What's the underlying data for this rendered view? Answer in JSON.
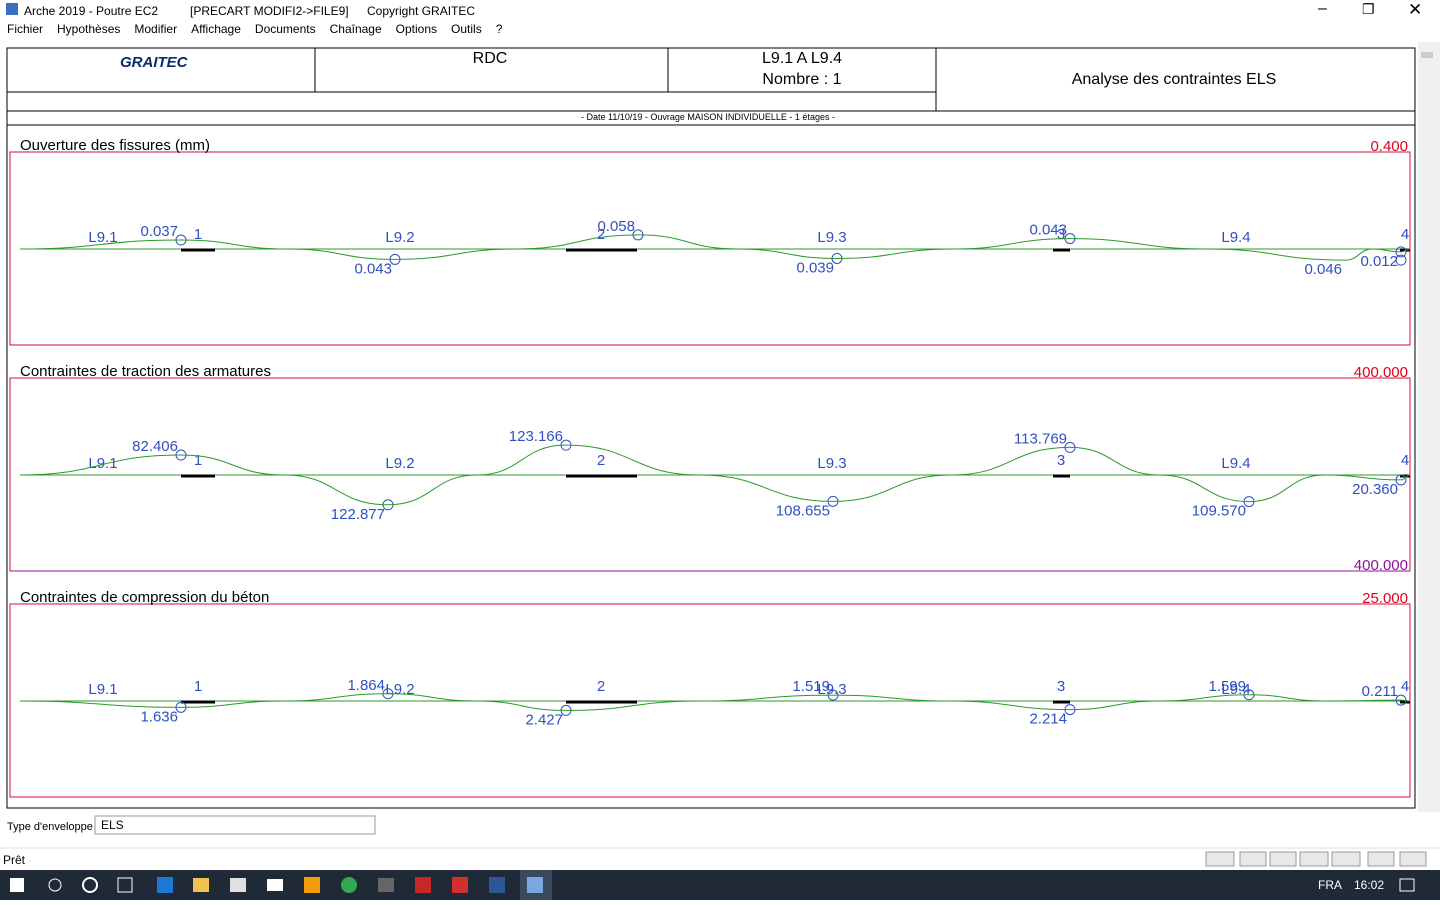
{
  "window": {
    "title": "Arche 2019 - Poutre EC2",
    "file": "[PRECART MODIFI2->FILE9]",
    "copyright": "Copyright GRAITEC"
  },
  "menu": [
    "Fichier",
    "Hypothèses",
    "Modifier",
    "Affichage",
    "Documents",
    "Chaînage",
    "Options",
    "Outils",
    "?"
  ],
  "header": {
    "logo": "GRAITEC",
    "level": "RDC",
    "beams": "L9.1 A L9.4",
    "count": "Nombre : 1",
    "title": "Analyse des contraintes ELS",
    "info": "- Date 11/10/19 - Ouvrage MAISON INDIVIDUELLE - 1 étages -"
  },
  "panels": [
    {
      "title": "Ouverture des fissures (mm)",
      "top_limit": "0.400",
      "spans": [
        "L9.1",
        "L9.2",
        "L9.3",
        "L9.4"
      ],
      "supports": [
        "1",
        "2",
        "3",
        "4"
      ],
      "extremes": [
        {
          "label": "0.037",
          "side": "top"
        },
        {
          "label": "0.043",
          "side": "bottom"
        },
        {
          "label": "0.058",
          "side": "top"
        },
        {
          "label": "0.039",
          "side": "bottom"
        },
        {
          "label": "0.043",
          "side": "top"
        },
        {
          "label": "0.046",
          "side": "bottom"
        },
        {
          "label": "0.012",
          "side": "bottom"
        }
      ]
    },
    {
      "title": "Contraintes de traction des armatures",
      "top_limit": "400.000",
      "bottom_limit": "400.000",
      "spans": [
        "L9.1",
        "L9.2",
        "L9.3",
        "L9.4"
      ],
      "supports": [
        "1",
        "2",
        "3",
        "4"
      ],
      "extremes": [
        {
          "label": "82.406",
          "side": "top"
        },
        {
          "label": "122.877",
          "side": "bottom"
        },
        {
          "label": "123.166",
          "side": "top"
        },
        {
          "label": "108.655",
          "side": "bottom"
        },
        {
          "label": "113.769",
          "side": "top"
        },
        {
          "label": "109.570",
          "side": "bottom"
        },
        {
          "label": "20.360",
          "side": "bottom"
        }
      ]
    },
    {
      "title": "Contraintes de compression du béton",
      "top_limit": "25.000",
      "spans": [
        "L9.1",
        "L9.2",
        "L9.3",
        "L9.4"
      ],
      "supports": [
        "1",
        "2",
        "3",
        "4"
      ],
      "extremes": [
        {
          "label": "1.636",
          "side": "bottom"
        },
        {
          "label": "1.864",
          "side": "top"
        },
        {
          "label": "2.427",
          "side": "bottom"
        },
        {
          "label": "1.519",
          "side": "top"
        },
        {
          "label": "2.214",
          "side": "bottom"
        },
        {
          "label": "1.599",
          "side": "top"
        },
        {
          "label": "0.211",
          "side": "top"
        }
      ]
    }
  ],
  "envelope": {
    "label": "Type d'enveloppe",
    "value": "ELS"
  },
  "status": "Prêt",
  "taskbar": {
    "language": "FRA",
    "time": "16:02"
  }
}
